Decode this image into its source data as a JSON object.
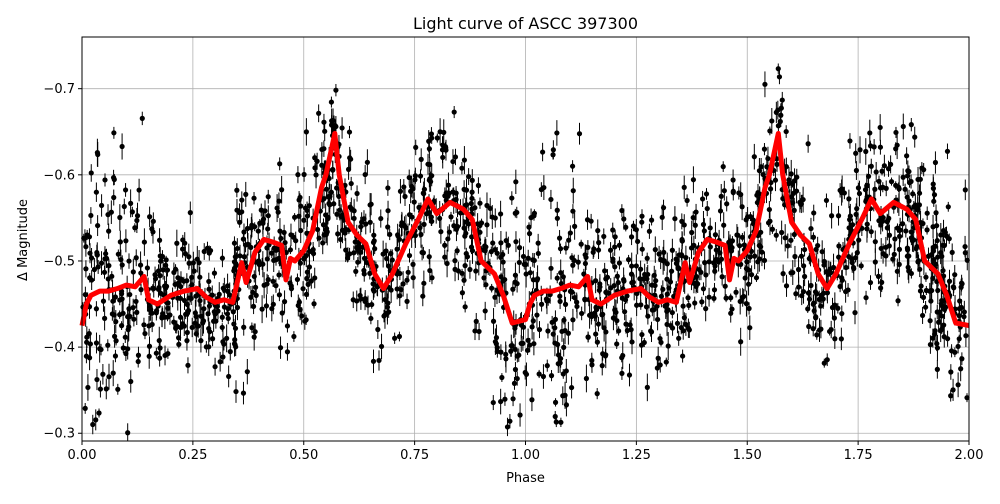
{
  "chart_data": {
    "type": "line",
    "title": "Light curve of ASCC 397300",
    "xlabel": "Phase",
    "ylabel": "Δ Magnitude",
    "xlim": [
      0,
      2
    ],
    "ylim": [
      -0.76,
      -0.291
    ],
    "y_inverted": true,
    "grid": true,
    "xticks": [
      "0.00",
      "0.25",
      "0.50",
      "0.75",
      "1.00",
      "1.25",
      "1.50",
      "1.75",
      "2.00"
    ],
    "xtick_values": [
      0,
      0.25,
      0.5,
      0.75,
      1.0,
      1.25,
      1.5,
      1.75,
      2.0
    ],
    "yticks": [
      "−0.7",
      "−0.6",
      "−0.5",
      "−0.4",
      "−0.3"
    ],
    "ytick_values": [
      -0.7,
      -0.6,
      -0.5,
      -0.4,
      -0.3
    ],
    "scatter_color": "#000000",
    "line_color": "#ff0000",
    "series": [
      {
        "kind": "binned-mean-line",
        "x": [
          0.0,
          0.01,
          0.02,
          0.04,
          0.06,
          0.08,
          0.1,
          0.12,
          0.14,
          0.15,
          0.17,
          0.2,
          0.23,
          0.26,
          0.28,
          0.3,
          0.32,
          0.34,
          0.36,
          0.37,
          0.39,
          0.41,
          0.43,
          0.45,
          0.46,
          0.47,
          0.48,
          0.5,
          0.52,
          0.54,
          0.55,
          0.57,
          0.58,
          0.6,
          0.62,
          0.64,
          0.66,
          0.68,
          0.7,
          0.73,
          0.76,
          0.78,
          0.8,
          0.83,
          0.86,
          0.88,
          0.9,
          0.93,
          0.95,
          0.97,
          1.0,
          1.01,
          1.02,
          1.04,
          1.06,
          1.08,
          1.1,
          1.12,
          1.14,
          1.15,
          1.17,
          1.2,
          1.23,
          1.26,
          1.28,
          1.3,
          1.32,
          1.34,
          1.36,
          1.37,
          1.39,
          1.41,
          1.43,
          1.45,
          1.46,
          1.47,
          1.48,
          1.5,
          1.52,
          1.54,
          1.55,
          1.57,
          1.58,
          1.6,
          1.62,
          1.64,
          1.66,
          1.68,
          1.7,
          1.73,
          1.76,
          1.78,
          1.8,
          1.83,
          1.86,
          1.88,
          1.9,
          1.93,
          1.95,
          1.97,
          2.0
        ],
        "y": [
          -0.425,
          -0.45,
          -0.46,
          -0.465,
          -0.465,
          -0.468,
          -0.472,
          -0.47,
          -0.482,
          -0.455,
          -0.45,
          -0.46,
          -0.465,
          -0.468,
          -0.458,
          -0.452,
          -0.455,
          -0.452,
          -0.498,
          -0.475,
          -0.51,
          -0.525,
          -0.522,
          -0.518,
          -0.478,
          -0.503,
          -0.5,
          -0.512,
          -0.535,
          -0.585,
          -0.6,
          -0.648,
          -0.6,
          -0.545,
          -0.53,
          -0.52,
          -0.485,
          -0.468,
          -0.485,
          -0.52,
          -0.55,
          -0.572,
          -0.555,
          -0.568,
          -0.56,
          -0.548,
          -0.5,
          -0.485,
          -0.46,
          -0.428,
          -0.432,
          -0.45,
          -0.46,
          -0.465,
          -0.465,
          -0.468,
          -0.472,
          -0.47,
          -0.482,
          -0.455,
          -0.45,
          -0.46,
          -0.465,
          -0.468,
          -0.458,
          -0.452,
          -0.455,
          -0.452,
          -0.498,
          -0.475,
          -0.51,
          -0.525,
          -0.522,
          -0.518,
          -0.478,
          -0.503,
          -0.5,
          -0.512,
          -0.535,
          -0.585,
          -0.6,
          -0.648,
          -0.6,
          -0.545,
          -0.53,
          -0.52,
          -0.485,
          -0.468,
          -0.485,
          -0.52,
          -0.55,
          -0.572,
          -0.555,
          -0.568,
          -0.56,
          -0.548,
          -0.5,
          -0.485,
          -0.46,
          -0.428,
          -0.425
        ]
      }
    ]
  }
}
